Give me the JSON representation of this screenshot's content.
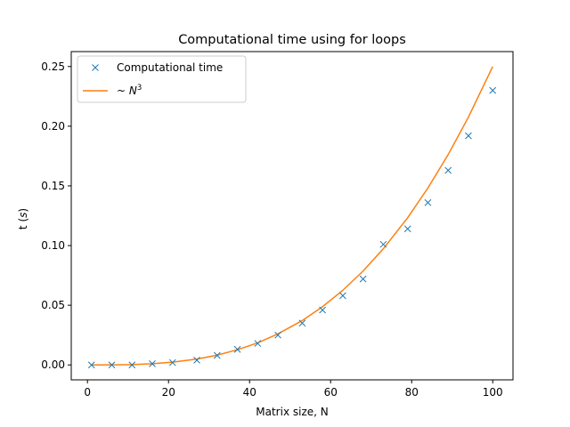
{
  "chart_data": {
    "type": "line",
    "title": "Computational time using for loops",
    "xlabel": "Matrix size, N",
    "ylabel_main": "t (",
    "ylabel_italic": "s",
    "ylabel_end": ")",
    "xlim": [
      -4,
      105
    ],
    "ylim": [
      -0.0125,
      0.2625
    ],
    "xticks": [
      0,
      20,
      40,
      60,
      80,
      100
    ],
    "xtick_labels": [
      "0",
      "20",
      "40",
      "60",
      "80",
      "100"
    ],
    "yticks": [
      0.0,
      0.05,
      0.1,
      0.15,
      0.2,
      0.25
    ],
    "ytick_labels": [
      "0.00",
      "0.05",
      "0.10",
      "0.15",
      "0.20",
      "0.25"
    ],
    "legend_position": "top-left",
    "grid": false,
    "series": [
      {
        "name": "Computational time",
        "kind": "scatter",
        "marker": "x",
        "color": "#1f77b4",
        "x": [
          1,
          6,
          11,
          16,
          21,
          27,
          32,
          37,
          42,
          47,
          53,
          58,
          63,
          68,
          73,
          79,
          84,
          89,
          94,
          100
        ],
        "y": [
          0.0,
          0.0,
          0.0,
          0.001,
          0.002,
          0.004,
          0.008,
          0.013,
          0.018,
          0.025,
          0.035,
          0.046,
          0.058,
          0.072,
          0.101,
          0.114,
          0.136,
          0.163,
          0.192,
          0.23
        ]
      },
      {
        "name_prefix": "~ ",
        "name_var": "N",
        "name_exp": "3",
        "kind": "line",
        "color": "#ff7f0e",
        "x": [
          1,
          6,
          11,
          16,
          21,
          27,
          32,
          37,
          42,
          47,
          53,
          58,
          63,
          68,
          73,
          79,
          84,
          89,
          94,
          100
        ],
        "y": [
          0.0,
          5e-05,
          0.0003,
          0.001,
          0.0023,
          0.0049,
          0.0082,
          0.0127,
          0.0185,
          0.026,
          0.0372,
          0.0488,
          0.0625,
          0.0786,
          0.0973,
          0.1233,
          0.1482,
          0.1762,
          0.2076,
          0.25
        ]
      }
    ]
  }
}
